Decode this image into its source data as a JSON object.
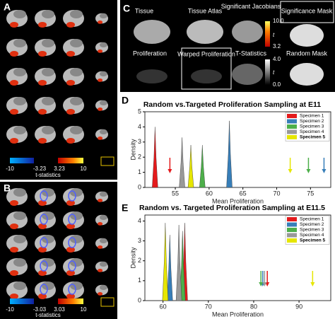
{
  "panels": {
    "a": {
      "label": "A",
      "cb_min": "-10",
      "cb_lo": "-3.23",
      "cb_hi": "3.23",
      "cb_max": "10",
      "cb_title": "t-statistics"
    },
    "b": {
      "label": "B",
      "cb_min": "-10",
      "cb_lo": "-3.03",
      "cb_hi": "3.03",
      "cb_max": "10",
      "cb_title": "t-statistics"
    },
    "c": {
      "label": "C",
      "tissue": "Tissue",
      "tissue_atlas": "Tissue Atlas",
      "sig_jacobians": "Significant Jacobians",
      "sig_mask": "Significance Mask",
      "proliferation": "Proliferation",
      "warped_proliferation": "Warped Proliferation",
      "t_statistics": "T-Statistics",
      "random_mask": "Random Mask",
      "cb1_max": "10.0",
      "cb1_t": "t",
      "cb1_min": "3.2",
      "cb2_max": "4.0",
      "cb2_t": "t",
      "cb2_min": "0.0"
    },
    "d": {
      "label": "D"
    },
    "e": {
      "label": "E"
    }
  },
  "chart_data": [
    {
      "type": "density",
      "title": "Random vs.Targeted Proliferation Sampling at E11",
      "y_label": "Density",
      "x_label": "Mean Proliferation",
      "xlim": [
        50.5,
        78
      ],
      "xticks": [
        55,
        60,
        65,
        70,
        75
      ],
      "ylim": [
        0,
        5
      ],
      "yticks": [
        0,
        1,
        2,
        3,
        4,
        5
      ],
      "series": [
        {
          "name": "Specimen 1",
          "color": "#e41a1c",
          "center": 52,
          "peak": 4.0,
          "targeted": 54.2
        },
        {
          "name": "Specimen 2",
          "color": "#377eb8",
          "center": 63,
          "peak": 4.4,
          "targeted": 77
        },
        {
          "name": "Specimen 3",
          "color": "#4daf4a",
          "center": 59,
          "peak": 2.8,
          "targeted": 74.7
        },
        {
          "name": "Specimen 4",
          "color": "#999999",
          "center": 56,
          "peak": 3.3,
          "targeted": null
        },
        {
          "name": "Specimen 5",
          "color": "#e6e600",
          "center": 57.3,
          "peak": 2.8,
          "targeted": 72
        }
      ]
    },
    {
      "type": "density",
      "title": "Random vs. Targeted Proliferation Sampling at E11.5",
      "y_label": "Density",
      "x_label": "Mean Proliferation",
      "xlim": [
        56,
        97
      ],
      "xticks": [
        60,
        70,
        80,
        90
      ],
      "ylim": [
        0,
        4.3
      ],
      "yticks": [
        0,
        1,
        2,
        3,
        4
      ],
      "series": [
        {
          "name": "Specimen 1",
          "color": "#e41a1c",
          "center": 64.8,
          "peak": 3.9,
          "targeted": 83
        },
        {
          "name": "Specimen 2",
          "color": "#377eb8",
          "center": 61.5,
          "peak": 3.3,
          "targeted": 82
        },
        {
          "name": "Specimen 3",
          "color": "#4daf4a",
          "center": 64.3,
          "peak": 3.5,
          "targeted": 81.6
        },
        {
          "name": "Specimen 4",
          "color": "#999999",
          "center": 63.5,
          "peak": 3.8,
          "targeted": 82.4
        },
        {
          "name": "Specimen 5",
          "color": "#e6e600",
          "center": 60.5,
          "peak": 3.9,
          "targeted": 93
        }
      ]
    }
  ]
}
